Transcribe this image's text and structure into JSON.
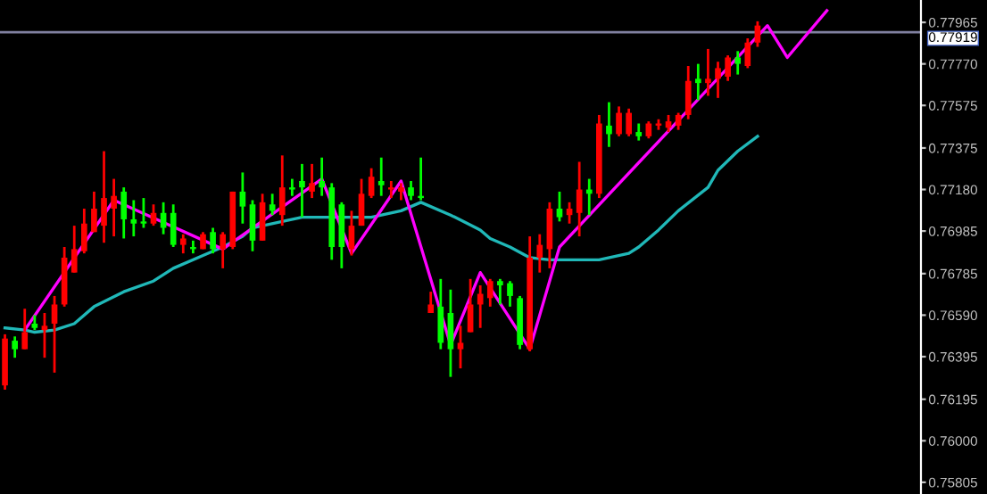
{
  "chart_data": {
    "type": "candlestick",
    "categories": [
      null,
      null,
      null,
      null,
      null,
      null,
      null,
      null,
      null,
      null,
      null,
      null,
      null,
      null,
      null,
      null,
      null,
      null,
      null,
      null,
      null,
      null,
      null,
      null,
      null,
      null,
      null,
      null,
      null,
      null,
      null,
      null,
      null,
      null,
      null,
      null,
      null,
      null,
      null,
      null,
      null,
      null,
      null,
      null,
      null,
      null,
      null,
      null,
      null,
      null,
      null,
      null,
      null,
      null,
      null,
      null,
      null,
      null,
      null,
      null,
      null,
      null,
      null,
      null,
      null,
      null,
      null,
      null,
      null,
      null,
      null,
      null,
      null,
      null,
      null,
      null,
      null,
      null,
      null,
      null,
      null,
      null,
      null,
      null,
      null,
      null,
      null,
      null,
      null,
      null,
      null,
      null,
      null
    ],
    "ohlc": [
      [
        0.7626,
        0.765,
        0.7624,
        0.7648
      ],
      [
        0.7647,
        0.7649,
        0.7639,
        0.7643
      ],
      [
        0.7643,
        0.7662,
        0.7643,
        0.7651
      ],
      [
        0.7655,
        0.7659,
        0.7652,
        0.7653
      ],
      [
        0.7652,
        0.766,
        0.7639,
        0.7654
      ],
      [
        0.7655,
        0.7668,
        0.7632,
        0.7664
      ],
      [
        0.7664,
        0.7691,
        0.7663,
        0.7686
      ],
      [
        0.7679,
        0.7701,
        0.7679,
        0.769
      ],
      [
        0.7689,
        0.7709,
        0.7688,
        0.7702
      ],
      [
        0.7698,
        0.7717,
        0.7698,
        0.7709
      ],
      [
        0.7701,
        0.7736,
        0.7693,
        0.7714
      ],
      [
        0.7709,
        0.7723,
        0.7696,
        0.7715
      ],
      [
        0.7717,
        0.7719,
        0.7695,
        0.7704
      ],
      [
        0.7704,
        0.7713,
        0.7696,
        0.7702
      ],
      [
        0.7703,
        0.7714,
        0.77,
        0.7702
      ],
      [
        0.7702,
        0.7711,
        0.7701,
        0.7707
      ],
      [
        0.7707,
        0.7712,
        0.7697,
        0.77
      ],
      [
        0.7707,
        0.7711,
        0.7691,
        0.7692
      ],
      [
        0.7692,
        0.7697,
        0.7688,
        0.7695
      ],
      [
        0.7691,
        0.7694,
        0.7688,
        0.769
      ],
      [
        0.769,
        0.7698,
        0.769,
        0.7697
      ],
      [
        0.7698,
        0.77,
        0.7688,
        0.769
      ],
      [
        0.769,
        0.7698,
        0.7681,
        0.7697
      ],
      [
        0.7691,
        0.7717,
        0.769,
        0.7717
      ],
      [
        0.7717,
        0.7726,
        0.7702,
        0.771
      ],
      [
        0.7711,
        0.7713,
        0.7689,
        0.7694
      ],
      [
        0.7694,
        0.7716,
        0.7694,
        0.7712
      ],
      [
        0.7711,
        0.7716,
        0.7706,
        0.7708
      ],
      [
        0.7706,
        0.7734,
        0.7701,
        0.7719
      ],
      [
        0.7719,
        0.7723,
        0.7715,
        0.7718
      ],
      [
        0.7722,
        0.773,
        0.7705,
        0.7719
      ],
      [
        0.7717,
        0.773,
        0.7714,
        0.7721
      ],
      [
        0.7722,
        0.7733,
        0.7715,
        0.7719
      ],
      [
        0.7719,
        0.7721,
        0.7685,
        0.7691
      ],
      [
        0.7711,
        0.7712,
        0.7681,
        0.7691
      ],
      [
        0.769,
        0.7708,
        0.7687,
        0.7701
      ],
      [
        0.7701,
        0.7723,
        0.7701,
        0.7716
      ],
      [
        0.7715,
        0.7728,
        0.7714,
        0.7724
      ],
      [
        0.7722,
        0.7733,
        0.7715,
        0.772
      ],
      [
        0.7718,
        0.7722,
        0.7714,
        0.7719
      ],
      [
        0.7717,
        0.7721,
        0.7713,
        0.7719
      ],
      [
        0.7719,
        0.7722,
        0.7713,
        0.7715
      ],
      [
        0.7715,
        0.7733,
        0.7713,
        0.7714
      ],
      [
        0.766,
        0.767,
        0.766,
        0.7664
      ],
      [
        0.7663,
        0.7676,
        0.7643,
        0.7646
      ],
      [
        0.766,
        0.7671,
        0.763,
        0.7643
      ],
      [
        0.7643,
        0.7654,
        0.7634,
        0.7646
      ],
      [
        0.7651,
        0.7676,
        0.7651,
        0.7664
      ],
      [
        0.7664,
        0.7673,
        0.7653,
        0.7669
      ],
      [
        0.7667,
        0.7676,
        0.7663,
        0.7675
      ],
      [
        0.7675,
        0.7676,
        0.7664,
        0.7673
      ],
      [
        0.7674,
        0.7675,
        0.7663,
        0.7668
      ],
      [
        0.7667,
        0.7668,
        0.7643,
        0.7645
      ],
      [
        0.7643,
        0.7696,
        0.7642,
        0.7686
      ],
      [
        0.7686,
        0.7697,
        0.7679,
        0.7692
      ],
      [
        0.769,
        0.7712,
        0.7681,
        0.7709
      ],
      [
        0.7709,
        0.7717,
        0.7703,
        0.7705
      ],
      [
        0.7706,
        0.7712,
        0.7702,
        0.7709
      ],
      [
        0.7707,
        0.7731,
        0.7696,
        0.7718
      ],
      [
        0.7718,
        0.7723,
        0.7706,
        0.7716
      ],
      [
        0.7716,
        0.7753,
        0.7714,
        0.7749
      ],
      [
        0.7748,
        0.7759,
        0.7738,
        0.7744
      ],
      [
        0.7744,
        0.7757,
        0.7743,
        0.7754
      ],
      [
        0.7744,
        0.7756,
        0.7743,
        0.7754
      ],
      [
        0.7745,
        0.7749,
        0.7741,
        0.7743
      ],
      [
        0.7743,
        0.775,
        0.7742,
        0.7749
      ],
      [
        0.7748,
        0.7751,
        0.7746,
        0.7749
      ],
      [
        0.7747,
        0.7753,
        0.7745,
        0.775
      ],
      [
        0.7748,
        0.7754,
        0.7746,
        0.7753
      ],
      [
        0.7753,
        0.7776,
        0.7751,
        0.7769
      ],
      [
        0.777,
        0.7777,
        0.776,
        0.7768
      ],
      [
        0.7768,
        0.7784,
        0.7762,
        0.777
      ],
      [
        0.777,
        0.7778,
        0.7761,
        0.7775
      ],
      [
        0.7771,
        0.7781,
        0.7769,
        0.778
      ],
      [
        0.778,
        0.7783,
        0.7772,
        0.7777
      ],
      [
        0.7776,
        0.7789,
        0.7775,
        0.7787
      ],
      [
        0.7787,
        0.7797,
        0.7785,
        0.7795
      ],
      null,
      null,
      null,
      null,
      null,
      null,
      null,
      null,
      null,
      null,
      null,
      null,
      null,
      null,
      null,
      null
    ],
    "colors": [
      "#ff0000",
      "#00ff00",
      "#ff0000",
      "#00ff00",
      "#ff0000",
      "#ff0000",
      "#ff0000",
      "#ff0000",
      "#ff0000",
      "#ff0000",
      "#ff0000",
      "#ff0000",
      "#00ff00",
      "#00ff00",
      "#00ff00",
      "#ff0000",
      "#00ff00",
      "#00ff00",
      "#ff0000",
      "#00ff00",
      "#ff0000",
      "#00ff00",
      "#ff0000",
      "#ff0000",
      "#00ff00",
      "#00ff00",
      "#ff0000",
      "#00ff00",
      "#ff0000",
      "#00ff00",
      "#00ff00",
      "#ff0000",
      "#00ff00",
      "#00ff00",
      "#00ff00",
      "#ff0000",
      "#ff0000",
      "#ff0000",
      "#00ff00",
      "#ff0000",
      "#ff0000",
      "#00ff00",
      "#00ff00",
      "#ff0000",
      "#00ff00",
      "#00ff00",
      "#ff0000",
      "#ff0000",
      "#ff0000",
      "#ff0000",
      "#00ff00",
      "#00ff00",
      "#00ff00",
      "#ff0000",
      "#ff0000",
      "#ff0000",
      "#00ff00",
      "#ff0000",
      "#ff0000",
      "#00ff00",
      "#ff0000",
      "#00ff00",
      "#ff0000",
      "#ff0000",
      "#00ff00",
      "#ff0000",
      "#ff0000",
      "#ff0000",
      "#ff0000",
      "#ff0000",
      "#00ff00",
      "#ff0000",
      "#ff0000",
      "#ff0000",
      "#00ff00",
      "#ff0000",
      "#ff0000",
      null,
      null,
      null,
      null,
      null,
      null,
      null,
      null,
      null,
      null,
      null,
      null,
      null,
      null,
      null,
      null
    ],
    "series": [
      {
        "type": "line",
        "color": "#20b8b8",
        "values": [
          0.7653,
          null,
          0.7652,
          0.7651,
          null,
          0.7652,
          null,
          0.7655,
          null,
          0.7663,
          null,
          null,
          0.767,
          null,
          null,
          0.7675,
          null,
          0.7681,
          null,
          null,
          0.7687,
          null,
          0.7691,
          null,
          0.7696,
          0.77,
          null,
          null,
          0.7703,
          null,
          0.7705,
          null,
          0.7705,
          null,
          null,
          null,
          null,
          0.7705,
          null,
          null,
          0.7708,
          null,
          0.7712,
          null,
          null,
          0.7706,
          null,
          null,
          0.7699,
          0.7695,
          null,
          0.7691,
          null,
          0.7686,
          null,
          0.7685,
          null,
          0.7685,
          null,
          null,
          0.7685,
          null,
          null,
          0.7688,
          0.7691,
          null,
          0.7699,
          null,
          0.7708,
          null,
          null,
          0.7719,
          0.7727,
          null,
          0.7736,
          null,
          0.7743,
          null,
          null,
          null,
          null,
          null,
          null,
          null,
          null,
          null,
          null,
          null,
          null,
          null,
          null,
          null,
          null
        ]
      },
      {
        "type": "line",
        "color": "#ff00ff",
        "values": [
          null,
          null,
          0.7652,
          null,
          null,
          null,
          null,
          null,
          null,
          null,
          null,
          0.7713,
          null,
          null,
          null,
          null,
          null,
          null,
          null,
          null,
          null,
          null,
          0.769,
          null,
          null,
          null,
          null,
          null,
          null,
          null,
          null,
          null,
          0.7723,
          null,
          null,
          0.7688,
          null,
          null,
          null,
          null,
          0.7722,
          null,
          null,
          null,
          null,
          0.7645,
          null,
          null,
          0.7679,
          null,
          null,
          null,
          null,
          0.7643,
          null,
          null,
          0.7691,
          null,
          null,
          null,
          null,
          null,
          null,
          null,
          null,
          null,
          null,
          null,
          null,
          null,
          null,
          null,
          null,
          null,
          null,
          null,
          null,
          0.7795,
          null,
          0.778,
          null,
          null,
          null,
          0.7802,
          null,
          null,
          null,
          null,
          null,
          null,
          null,
          null,
          null
        ]
      }
    ],
    "ylim": [
      0.7575,
      0.7807
    ],
    "yticks": [
      0.77965,
      {
        "value": 0.7777,
        "label": "0.77770"
      },
      0.77575,
      0.77375,
      {
        "value": 0.7718,
        "label": "0.77180"
      },
      0.76985,
      0.76785,
      {
        "value": 0.7659,
        "label": "0.76590"
      },
      0.76395,
      0.76195,
      {
        "value": 0.76,
        "label": "0.76000"
      },
      0.75805
    ],
    "ref_lines": [
      {
        "axis": "y",
        "value": 0.77919,
        "label": "0.77919",
        "color": "#8080a0"
      }
    ]
  }
}
